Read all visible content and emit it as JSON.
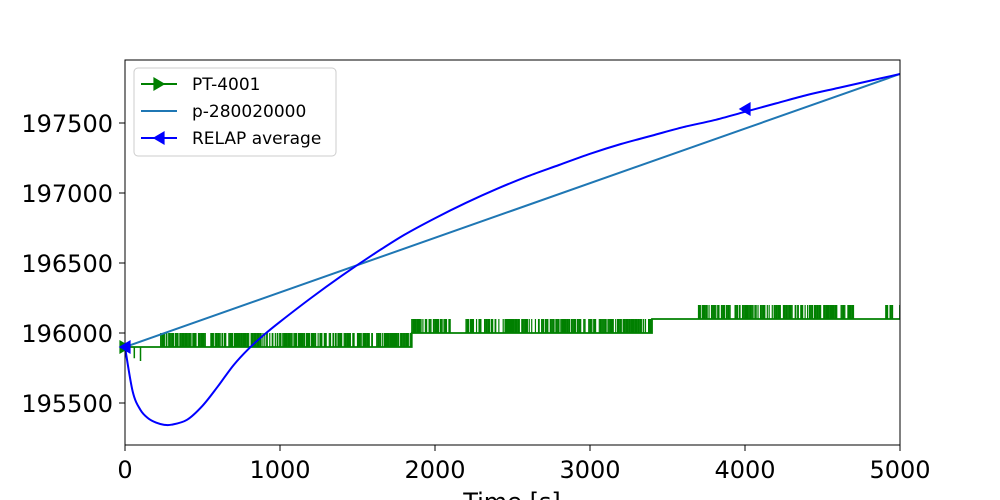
{
  "chart_data": {
    "type": "line",
    "title": "",
    "xlabel": "Time [s]",
    "ylabel": "",
    "xlim": [
      0,
      5000
    ],
    "ylim": [
      195200,
      197950
    ],
    "x_ticks": [
      0,
      1000,
      2000,
      3000,
      4000,
      5000
    ],
    "y_ticks": [
      195500,
      196000,
      196500,
      197000,
      197500
    ],
    "grid": false,
    "legend_position": "upper-left",
    "series": [
      {
        "name": "PT-4001",
        "color": "#008000",
        "marker": "triangle-right",
        "markers_at": [
          [
            0,
            195900
          ]
        ],
        "x": [
          0,
          50,
          100,
          200,
          300,
          400,
          500,
          600,
          700,
          800,
          900,
          1000,
          1100,
          1200,
          1300,
          1400,
          1500,
          1600,
          1700,
          1800,
          1850,
          1900,
          2000,
          2100,
          2200,
          2300,
          2400,
          2500,
          2600,
          2700,
          2800,
          2900,
          3000,
          3100,
          3200,
          3300,
          3400,
          3500,
          3600,
          3700,
          3800,
          3900,
          4000,
          4100,
          4200,
          4300,
          4400,
          4500,
          4600,
          4700,
          4800,
          4900,
          5000
        ],
        "y": [
          195900,
          195900,
          195900,
          195900,
          195900,
          195900,
          195900,
          195900,
          195900,
          195900,
          195900,
          195900,
          195900,
          195900,
          195900,
          195900,
          195900,
          195900,
          195900,
          195900,
          196000,
          196000,
          196000,
          196000,
          196000,
          196000,
          196000,
          196000,
          196000,
          196000,
          196000,
          196000,
          196000,
          196000,
          196000,
          196000,
          196100,
          196100,
          196100,
          196100,
          196100,
          196100,
          196100,
          196100,
          196100,
          196100,
          196100,
          196100,
          196100,
          196100,
          196100,
          196100,
          196200
        ],
        "fluctuation_bands": [
          {
            "x_start": 230,
            "x_end": 1480,
            "low": 195900,
            "high": 196000
          },
          {
            "x_start": 1500,
            "x_end": 1850,
            "low": 195900,
            "high": 196000
          },
          {
            "x_start": 1850,
            "x_end": 2100,
            "low": 196000,
            "high": 196100
          },
          {
            "x_start": 2200,
            "x_end": 3150,
            "low": 196000,
            "high": 196100
          },
          {
            "x_start": 3150,
            "x_end": 3400,
            "low": 196000,
            "high": 196100
          },
          {
            "x_start": 3700,
            "x_end": 4700,
            "low": 196100,
            "high": 196200
          },
          {
            "x_start": 4900,
            "x_end": 4960,
            "low": 196100,
            "high": 196200
          }
        ]
      },
      {
        "name": "p-280020000",
        "color": "#1f77b4",
        "marker": "none",
        "x": [
          0,
          5000
        ],
        "y": [
          195900,
          197850
        ],
        "hidden_under": "RELAP average"
      },
      {
        "name": "RELAP average",
        "color": "#0000ff",
        "marker": "triangle-left",
        "markers_at": [
          [
            0,
            195900
          ],
          [
            4000,
            197600
          ]
        ],
        "x": [
          0,
          50,
          100,
          150,
          200,
          250,
          300,
          400,
          500,
          600,
          700,
          800,
          900,
          1000,
          1200,
          1400,
          1600,
          1800,
          2000,
          2200,
          2400,
          2600,
          2800,
          3000,
          3200,
          3400,
          3600,
          3800,
          4000,
          4200,
          4400,
          4600,
          4800,
          5000
        ],
        "y": [
          195900,
          195580,
          195450,
          195390,
          195360,
          195345,
          195345,
          195380,
          195480,
          195620,
          195770,
          195890,
          195990,
          196080,
          196250,
          196410,
          196560,
          196700,
          196820,
          196930,
          197030,
          197120,
          197200,
          197280,
          197350,
          197410,
          197470,
          197520,
          197580,
          197640,
          197700,
          197750,
          197800,
          197850
        ]
      }
    ]
  }
}
